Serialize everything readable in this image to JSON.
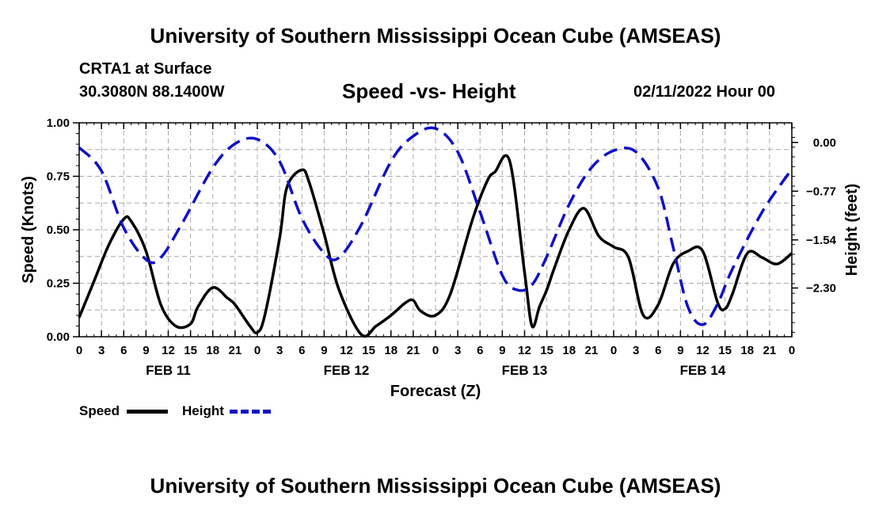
{
  "header": {
    "title": "University of Southern Mississippi Ocean Cube (AMSEAS)",
    "station": "CRTA1 at Surface",
    "coords": "30.3080N  88.1400W",
    "subtitle": "Speed -vs- Height",
    "datetime": "02/11/2022 Hour 00"
  },
  "footer": {
    "title": "University of Southern Mississippi Ocean Cube (AMSEAS)"
  },
  "legend": {
    "speed_label": "Speed",
    "height_label": "Height"
  },
  "colors": {
    "speed": "#000000",
    "height": "#1010c8",
    "grid": "#aaaaaa"
  },
  "chart_data": {
    "type": "line",
    "title": "Speed -vs- Height",
    "xlabel": "Forecast (Z)",
    "ylabel": "Speed (Knots)",
    "y2label": "Height (feet)",
    "xlim": [
      0,
      96
    ],
    "ylim": [
      0,
      1
    ],
    "y2lim": [
      -3.07,
      0.31
    ],
    "y_ticks": [
      "0.00",
      "0.25",
      "0.50",
      "0.75",
      "1.00"
    ],
    "y_tick_values": [
      0,
      0.25,
      0.5,
      0.75,
      1.0
    ],
    "y2_ticks": [
      "−2.30",
      "−1.54",
      "−0.77",
      "0.00"
    ],
    "y2_tick_values": [
      -2.3,
      -1.54,
      -0.77,
      0.0
    ],
    "x_ticks": [
      "0",
      "3",
      "6",
      "9",
      "12",
      "15",
      "18",
      "21",
      "0",
      "3",
      "6",
      "9",
      "12",
      "15",
      "18",
      "21",
      "0",
      "3",
      "6",
      "9",
      "12",
      "15",
      "18",
      "21",
      "0",
      "3",
      "6",
      "9",
      "12",
      "15",
      "18",
      "21",
      "0"
    ],
    "day_labels": [
      {
        "label": "FEB 11",
        "x": 12
      },
      {
        "label": "FEB 12",
        "x": 36
      },
      {
        "label": "FEB 13",
        "x": 60
      },
      {
        "label": "FEB 14",
        "x": 84
      }
    ],
    "series": [
      {
        "name": "Speed",
        "axis": "left",
        "style": "solid",
        "x": [
          0,
          2,
          4,
          6,
          7,
          9,
          11,
          13,
          15,
          16,
          18,
          20,
          21,
          23,
          24,
          25,
          27,
          28,
          30,
          31,
          33,
          35,
          38,
          40,
          42,
          44,
          45,
          46,
          48,
          50,
          53,
          55,
          56,
          58,
          60,
          61,
          62,
          63,
          64,
          66,
          68,
          70,
          72,
          74,
          76,
          78,
          80,
          82,
          84,
          86,
          87,
          88,
          90,
          92,
          94,
          96
        ],
        "values": [
          0.09,
          0.26,
          0.43,
          0.55,
          0.54,
          0.4,
          0.15,
          0.05,
          0.06,
          0.14,
          0.23,
          0.18,
          0.15,
          0.05,
          0.02,
          0.1,
          0.46,
          0.7,
          0.78,
          0.72,
          0.48,
          0.22,
          0.01,
          0.05,
          0.1,
          0.16,
          0.17,
          0.12,
          0.1,
          0.2,
          0.55,
          0.73,
          0.77,
          0.82,
          0.3,
          0.05,
          0.14,
          0.22,
          0.32,
          0.5,
          0.6,
          0.47,
          0.42,
          0.37,
          0.1,
          0.15,
          0.34,
          0.4,
          0.4,
          0.16,
          0.13,
          0.2,
          0.39,
          0.37,
          0.34,
          0.39
        ]
      },
      {
        "name": "Height",
        "axis": "right",
        "style": "dashed",
        "x": [
          0,
          3,
          6,
          9,
          11,
          14,
          18,
          21,
          24,
          27,
          30,
          33,
          35,
          38,
          42,
          45,
          48,
          51,
          54,
          57,
          59,
          61,
          63,
          66,
          69,
          72,
          75,
          78,
          80,
          82,
          84,
          86,
          88,
          92,
          96
        ],
        "values": [
          -0.08,
          -0.45,
          -1.35,
          -1.85,
          -1.82,
          -1.25,
          -0.4,
          -0.02,
          0.05,
          -0.3,
          -1.2,
          -1.75,
          -1.82,
          -1.3,
          -0.3,
          0.1,
          0.22,
          -0.15,
          -1.1,
          -2.1,
          -2.33,
          -2.25,
          -1.8,
          -0.98,
          -0.4,
          -0.13,
          -0.15,
          -0.72,
          -1.65,
          -2.6,
          -2.88,
          -2.55,
          -2.0,
          -1.1,
          -0.42
        ]
      }
    ]
  }
}
